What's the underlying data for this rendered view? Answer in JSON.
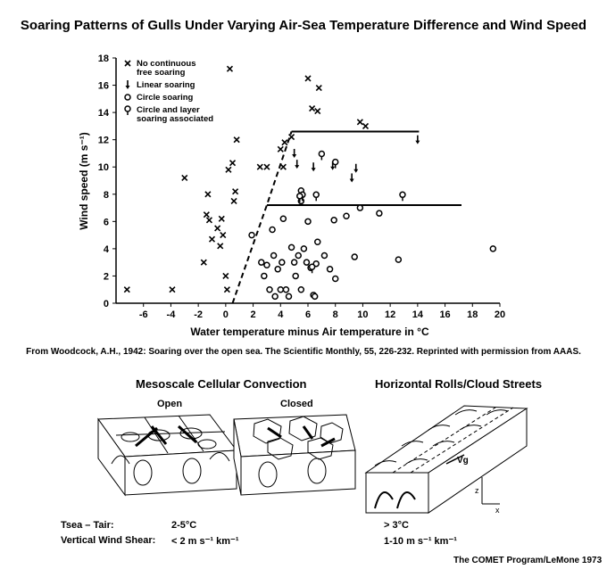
{
  "title": "Soaring Patterns of Gulls Under Varying Air-Sea Temperature Difference and Wind Speed",
  "chart_data": {
    "type": "scatter",
    "xlabel": "Water temperature minus Air temperature in °C",
    "ylabel": "Wind speed (m s⁻¹)",
    "xlim": [
      -8,
      20
    ],
    "ylim": [
      0,
      18
    ],
    "xticks": [
      -6,
      -4,
      -2,
      0,
      2,
      4,
      6,
      8,
      10,
      12,
      14,
      16,
      18,
      20
    ],
    "yticks": [
      0,
      2,
      4,
      6,
      8,
      10,
      12,
      14,
      16,
      18
    ],
    "legend": [
      {
        "symbol": "x",
        "label": "No continuous free soaring"
      },
      {
        "symbol": "arrow",
        "label": "Linear soaring"
      },
      {
        "symbol": "circle",
        "label": "Circle soaring"
      },
      {
        "symbol": "circle-tail",
        "label": "Circle and layer soaring associated"
      }
    ],
    "legend_position": "top-left",
    "series": [
      {
        "name": "No continuous free soaring",
        "marker": "x",
        "points": [
          [
            -7.2,
            1
          ],
          [
            -3.9,
            1
          ],
          [
            -3.0,
            9.2
          ],
          [
            -1.6,
            3.0
          ],
          [
            -1.4,
            6.5
          ],
          [
            -1.3,
            8.0
          ],
          [
            -1.2,
            6.1
          ],
          [
            -1.0,
            4.7
          ],
          [
            -0.6,
            5.5
          ],
          [
            -0.4,
            4.2
          ],
          [
            -0.3,
            6.2
          ],
          [
            -0.2,
            5.0
          ],
          [
            0,
            2
          ],
          [
            0.1,
            1
          ],
          [
            0.2,
            9.8
          ],
          [
            0.3,
            17.2
          ],
          [
            0.5,
            10.3
          ],
          [
            0.7,
            8.2
          ],
          [
            0.8,
            12.0
          ],
          [
            0.6,
            7.5
          ],
          [
            2.5,
            10.0
          ],
          [
            3.0,
            10.0
          ],
          [
            4.2,
            10.0
          ],
          [
            4.0,
            11.3
          ],
          [
            4.3,
            11.8
          ],
          [
            4.8,
            12.2
          ],
          [
            6.0,
            16.5
          ],
          [
            6.3,
            14.3
          ],
          [
            6.8,
            15.8
          ],
          [
            6.7,
            14.1
          ],
          [
            9.8,
            13.3
          ],
          [
            10.2,
            13.0
          ]
        ]
      },
      {
        "name": "Linear soaring",
        "marker": "arrow",
        "points": [
          [
            5.0,
            11.0
          ],
          [
            5.2,
            10.2
          ],
          [
            6.4,
            10.0
          ],
          [
            7.8,
            10.1
          ],
          [
            9.2,
            9.2
          ],
          [
            9.5,
            9.9
          ],
          [
            14.0,
            12.0
          ]
        ]
      },
      {
        "name": "Circle soaring",
        "marker": "circle",
        "points": [
          [
            1.9,
            5.0
          ],
          [
            2.6,
            3.0
          ],
          [
            2.8,
            2.0
          ],
          [
            3.0,
            2.8
          ],
          [
            3.2,
            1.0
          ],
          [
            3.4,
            5.4
          ],
          [
            3.5,
            3.5
          ],
          [
            3.6,
            0.5
          ],
          [
            3.8,
            2.5
          ],
          [
            4.0,
            1.0
          ],
          [
            4.1,
            3.0
          ],
          [
            4.2,
            6.2
          ],
          [
            4.4,
            1.0
          ],
          [
            4.6,
            0.5
          ],
          [
            4.8,
            4.1
          ],
          [
            5.0,
            3.0
          ],
          [
            5.1,
            2.0
          ],
          [
            5.3,
            3.5
          ],
          [
            5.5,
            1.0
          ],
          [
            5.7,
            4.0
          ],
          [
            5.9,
            3.0
          ],
          [
            6.0,
            6.0
          ],
          [
            6.2,
            2.6
          ],
          [
            6.4,
            0.6
          ],
          [
            6.6,
            2.9
          ],
          [
            6.7,
            4.5
          ],
          [
            7.2,
            3.5
          ],
          [
            7.6,
            2.5
          ],
          [
            7.9,
            6.1
          ],
          [
            8.0,
            1.8
          ],
          [
            8.8,
            6.4
          ],
          [
            9.4,
            3.4
          ],
          [
            9.8,
            7.0
          ],
          [
            11.2,
            6.6
          ],
          [
            12.6,
            3.2
          ],
          [
            19.5,
            4.0
          ],
          [
            5.5,
            7.5
          ],
          [
            6.5,
            0.5
          ]
        ]
      },
      {
        "name": "Circle and layer soaring associated",
        "marker": "circle-tail",
        "points": [
          [
            5.5,
            8.2
          ],
          [
            5.6,
            7.9
          ],
          [
            6.6,
            7.9
          ],
          [
            7.0,
            10.9
          ],
          [
            8.0,
            10.3
          ],
          [
            12.9,
            7.9
          ],
          [
            6.3,
            2.6
          ],
          [
            5.4,
            7.8
          ]
        ]
      }
    ],
    "lines": [
      {
        "style": "dashed",
        "points": [
          [
            0.5,
            0
          ],
          [
            3.0,
            7.2
          ],
          [
            4.8,
            12.6
          ]
        ]
      },
      {
        "style": "solid",
        "points": [
          [
            3.0,
            7.2
          ],
          [
            17.2,
            7.2
          ]
        ]
      },
      {
        "style": "solid",
        "points": [
          [
            4.8,
            12.6
          ],
          [
            14.1,
            12.6
          ]
        ]
      }
    ]
  },
  "citation": "From Woodcock, A.H., 1942: Soaring over the open sea. The Scientific Monthly, 55, 226-232. Reprinted with permission from AAAS.",
  "diagrams": {
    "left_title": "Mesoscale Cellular Convection",
    "open_label": "Open",
    "closed_label": "Closed",
    "right_title": "Horizontal Rolls/Cloud Streets",
    "vg_label": "Vg",
    "z_label": "z",
    "x_label": "x"
  },
  "conditions": {
    "temp_label": "Tsea – Tair:",
    "temp_value_mcc": "2-5°C",
    "shear_label": "Vertical Wind Shear:",
    "shear_value_mcc": "< 2 m s⁻¹ km⁻¹",
    "temp_value_rolls": "> 3°C",
    "shear_value_rolls": "1-10 m s⁻¹ km⁻¹"
  },
  "credit": "The COMET Program/LeMone 1973"
}
